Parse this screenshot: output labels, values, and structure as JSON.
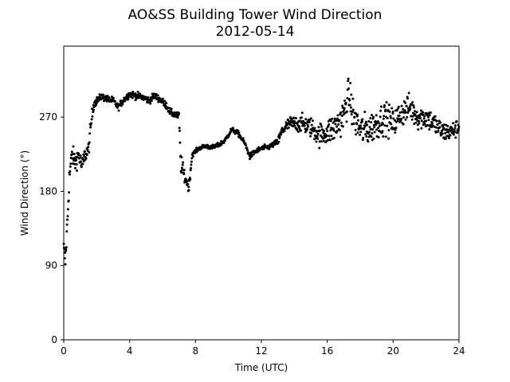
{
  "chart_data": {
    "type": "scatter",
    "title": "AO&SS Building Tower Wind Direction",
    "subtitle": "2012-05-14",
    "xlabel": "Time (UTC)",
    "ylabel": "Wind Direction (°)",
    "xlim": [
      0,
      24
    ],
    "ylim": [
      0,
      356
    ],
    "x_ticks": [
      0,
      4,
      8,
      12,
      16,
      20,
      24
    ],
    "x_tick_labels": [
      "0",
      "4",
      "8",
      "12",
      "16",
      "20",
      "24"
    ],
    "y_ticks": [
      0,
      90,
      180,
      270
    ],
    "y_tick_labels": [
      "0",
      "90",
      "180",
      "270"
    ],
    "grid": false,
    "marker_color": "#000000",
    "trend": [
      [
        0.0,
        110
      ],
      [
        0.1,
        95
      ],
      [
        0.2,
        135
      ],
      [
        0.35,
        200
      ],
      [
        0.5,
        225
      ],
      [
        0.7,
        215
      ],
      [
        0.9,
        225
      ],
      [
        1.1,
        210
      ],
      [
        1.3,
        225
      ],
      [
        1.5,
        230
      ],
      [
        1.65,
        260
      ],
      [
        1.8,
        285
      ],
      [
        2.0,
        290
      ],
      [
        2.3,
        295
      ],
      [
        2.6,
        292
      ],
      [
        3.0,
        290
      ],
      [
        3.3,
        282
      ],
      [
        3.6,
        290
      ],
      [
        4.0,
        298
      ],
      [
        4.4,
        296
      ],
      [
        4.8,
        294
      ],
      [
        5.2,
        290
      ],
      [
        5.5,
        296
      ],
      [
        5.8,
        292
      ],
      [
        6.2,
        285
      ],
      [
        6.5,
        275
      ],
      [
        6.8,
        273
      ],
      [
        7.0,
        270
      ],
      [
        7.1,
        215
      ],
      [
        7.3,
        200
      ],
      [
        7.6,
        185
      ],
      [
        7.8,
        225
      ],
      [
        8.2,
        232
      ],
      [
        8.6,
        235
      ],
      [
        9.0,
        233
      ],
      [
        9.4,
        236
      ],
      [
        9.8,
        242
      ],
      [
        10.2,
        255
      ],
      [
        10.6,
        250
      ],
      [
        11.0,
        238
      ],
      [
        11.3,
        222
      ],
      [
        11.6,
        228
      ],
      [
        12.0,
        232
      ],
      [
        12.5,
        234
      ],
      [
        13.0,
        240
      ],
      [
        13.3,
        255
      ],
      [
        13.7,
        262
      ],
      [
        14.0,
        262
      ],
      [
        14.5,
        262
      ],
      [
        15.0,
        258
      ],
      [
        15.5,
        248
      ],
      [
        16.0,
        252
      ],
      [
        16.5,
        258
      ],
      [
        17.0,
        272
      ],
      [
        17.3,
        298
      ],
      [
        17.6,
        270
      ],
      [
        18.0,
        255
      ],
      [
        18.5,
        255
      ],
      [
        19.0,
        262
      ],
      [
        19.5,
        270
      ],
      [
        20.0,
        262
      ],
      [
        20.5,
        275
      ],
      [
        21.0,
        282
      ],
      [
        21.5,
        270
      ],
      [
        22.0,
        270
      ],
      [
        22.5,
        262
      ],
      [
        23.0,
        252
      ],
      [
        23.5,
        252
      ],
      [
        24.0,
        258
      ]
    ],
    "noise": [
      [
        0,
        15
      ],
      [
        1.6,
        12
      ],
      [
        2.0,
        5
      ],
      [
        6.9,
        5
      ],
      [
        7.1,
        14
      ],
      [
        7.9,
        3
      ],
      [
        12.9,
        4
      ],
      [
        13.1,
        8
      ],
      [
        15.5,
        16
      ],
      [
        16.8,
        24
      ],
      [
        19.5,
        22
      ],
      [
        22.5,
        16
      ],
      [
        24,
        12
      ]
    ],
    "sample_step_hours": 0.02
  }
}
